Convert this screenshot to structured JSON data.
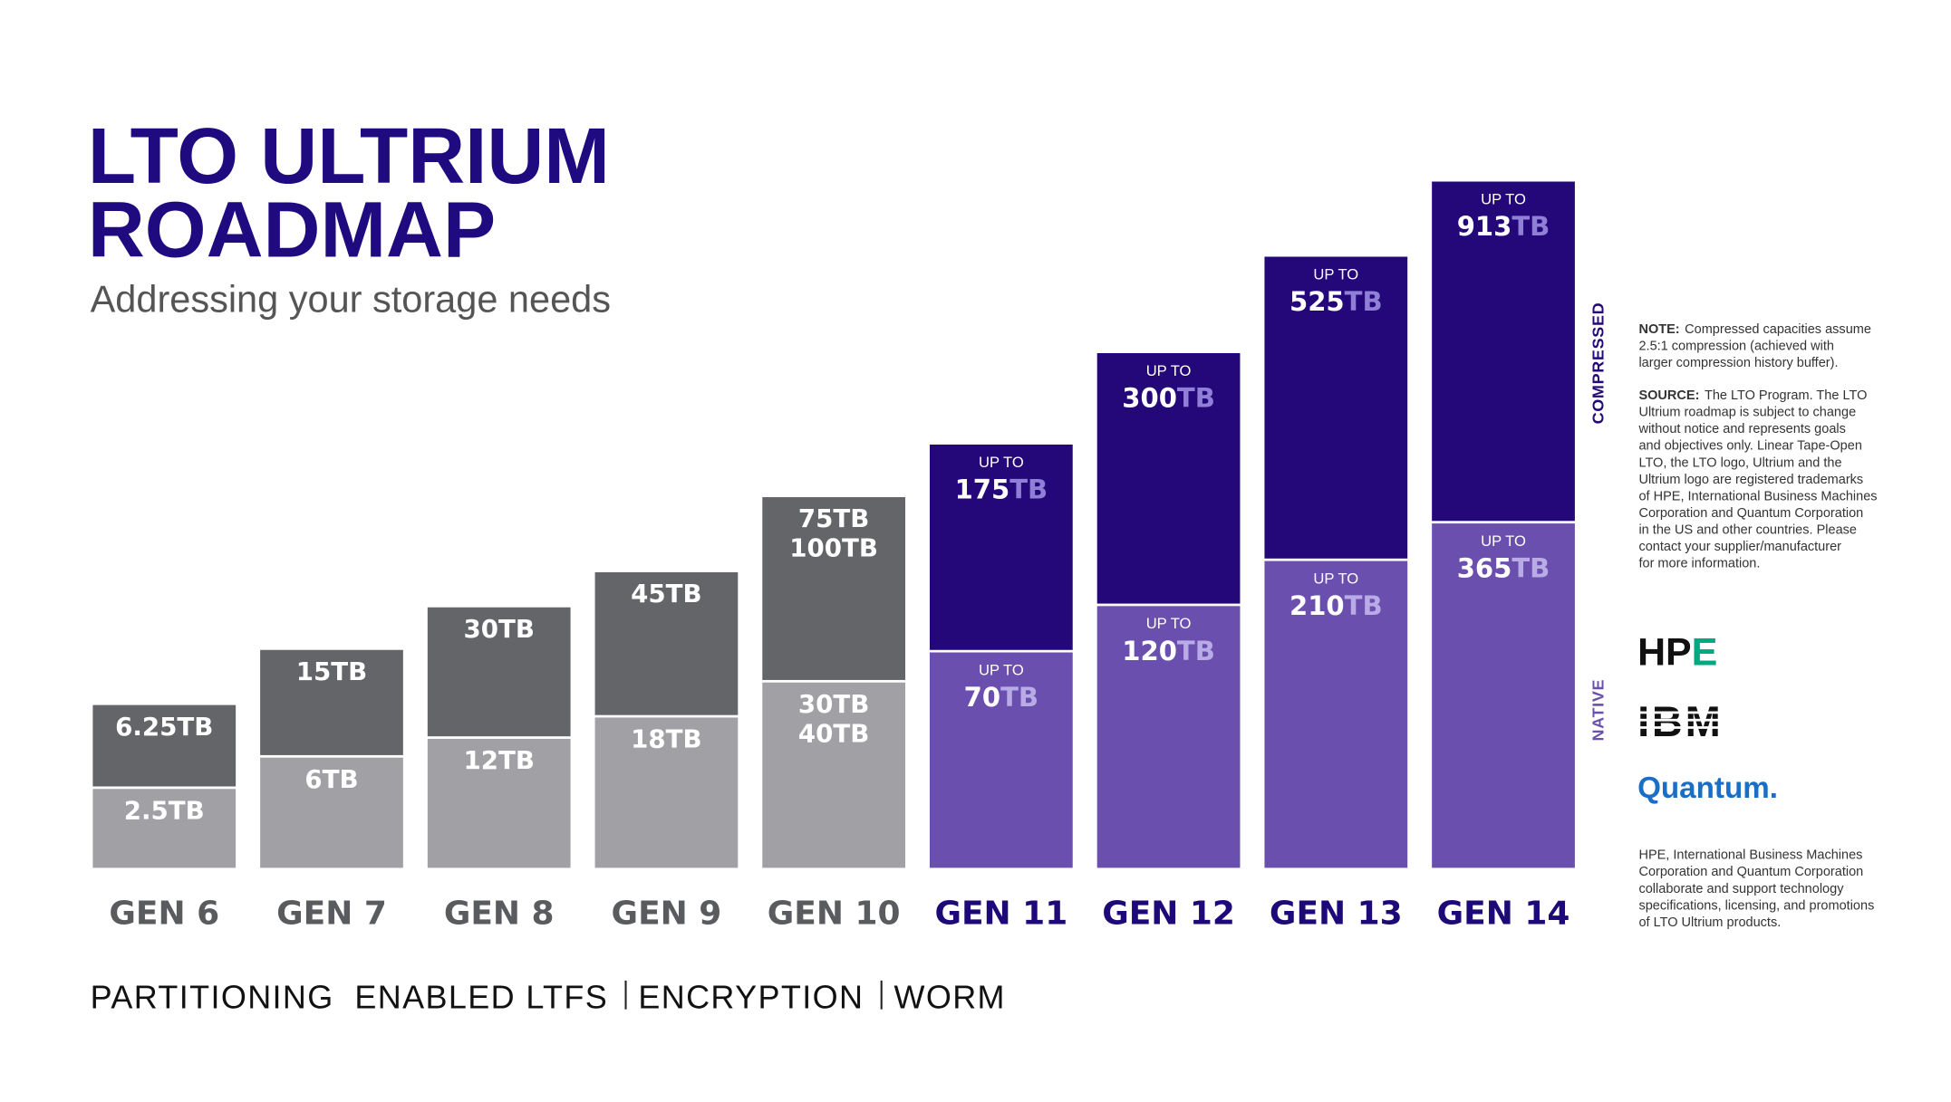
{
  "header": {
    "title_lines": [
      "LTO ULTRIUM",
      "ROADMAP"
    ],
    "subtitle": "Addressing your storage needs"
  },
  "generations": [
    {
      "label": "GEN 6",
      "native": {
        "lines": [
          "2.5TB"
        ]
      },
      "compressed": {
        "lines": [
          "6.25TB"
        ]
      }
    },
    {
      "label": "GEN 7",
      "native": {
        "lines": [
          "6TB"
        ]
      },
      "compressed": {
        "lines": [
          "15TB"
        ]
      }
    },
    {
      "label": "GEN 8",
      "native": {
        "lines": [
          "12TB"
        ]
      },
      "compressed": {
        "lines": [
          "30TB"
        ]
      }
    },
    {
      "label": "GEN 9",
      "native": {
        "lines": [
          "18TB"
        ]
      },
      "compressed": {
        "lines": [
          "45TB"
        ]
      }
    },
    {
      "label": "GEN 10",
      "native": {
        "lines": [
          "30TB",
          "40TB"
        ]
      },
      "compressed": {
        "lines": [
          "75TB",
          "100TB"
        ]
      }
    },
    {
      "label": "GEN 11",
      "native": {
        "prefix": "UP TO",
        "amount": "70",
        "unit": "TB"
      },
      "compressed": {
        "prefix": "UP TO",
        "amount": "175",
        "unit": "TB"
      }
    },
    {
      "label": "GEN 12",
      "native": {
        "prefix": "UP TO",
        "amount": "120",
        "unit": "TB"
      },
      "compressed": {
        "prefix": "UP TO",
        "amount": "300",
        "unit": "TB"
      }
    },
    {
      "label": "GEN 13",
      "native": {
        "prefix": "UP TO",
        "amount": "210",
        "unit": "TB"
      },
      "compressed": {
        "prefix": "UP TO",
        "amount": "525",
        "unit": "TB"
      }
    },
    {
      "label": "GEN 14",
      "native": {
        "prefix": "UP TO",
        "amount": "365",
        "unit": "TB"
      },
      "compressed": {
        "prefix": "UP TO",
        "amount": "913",
        "unit": "TB"
      }
    }
  ],
  "side_labels": {
    "compressed": "COMPRESSED",
    "native": "NATIVE"
  },
  "note": {
    "label": "NOTE:",
    "lines": [
      "Compressed capacities assume",
      "2.5:1 compression (achieved with",
      "larger compression history buffer)."
    ]
  },
  "source": {
    "label": "SOURCE:",
    "lines": [
      "The LTO Program. The LTO",
      "Ultrium roadmap is subject to change",
      "without notice and represents goals",
      "and objectives only. Linear Tape-Open",
      "LTO, the LTO logo, Ultrium and the",
      "Ultrium logo are registered trademarks",
      "of HPE, International Business Machines",
      "Corporation and Quantum Corporation",
      "in the US and other countries. Please",
      "contact your supplier/manufacturer",
      "for more information."
    ]
  },
  "logos": [
    "HPE",
    "IBM",
    "Quantum."
  ],
  "disclaimer": [
    "HPE, International Business Machines",
    "Corporation and Quantum Corporation",
    "collaborate and support technology",
    "specifications, licensing, and promotions",
    "of LTO Ultrium products."
  ],
  "footer": {
    "features": [
      "PARTITIONING  ENABLED LTFS",
      "ENCRYPTION",
      "WORM"
    ]
  }
}
